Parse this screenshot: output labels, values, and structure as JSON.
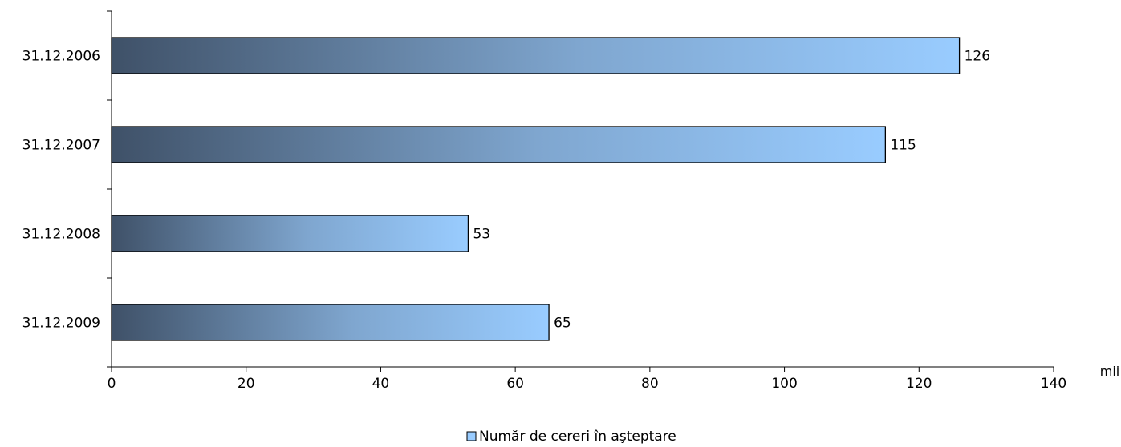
{
  "chart_data": {
    "type": "bar",
    "orientation": "horizontal",
    "categories": [
      "31.12.2006",
      "31.12.2007",
      "31.12.2008",
      "31.12.2009"
    ],
    "series": [
      {
        "name": "Număr de cereri în aşteptare",
        "values": [
          126,
          115,
          53,
          65
        ]
      }
    ],
    "data_labels": [
      "126",
      "115",
      "53",
      "65"
    ],
    "x_ticks": [
      "0",
      "20",
      "40",
      "60",
      "80",
      "100",
      "120",
      "140"
    ],
    "x_unit": "mii",
    "xlim": [
      0,
      140
    ],
    "grid": false,
    "legend_position": "bottom",
    "colors": {
      "bar_start": "#3f5168",
      "bar_end": "#99ccff",
      "bar_border": "#000000"
    }
  }
}
